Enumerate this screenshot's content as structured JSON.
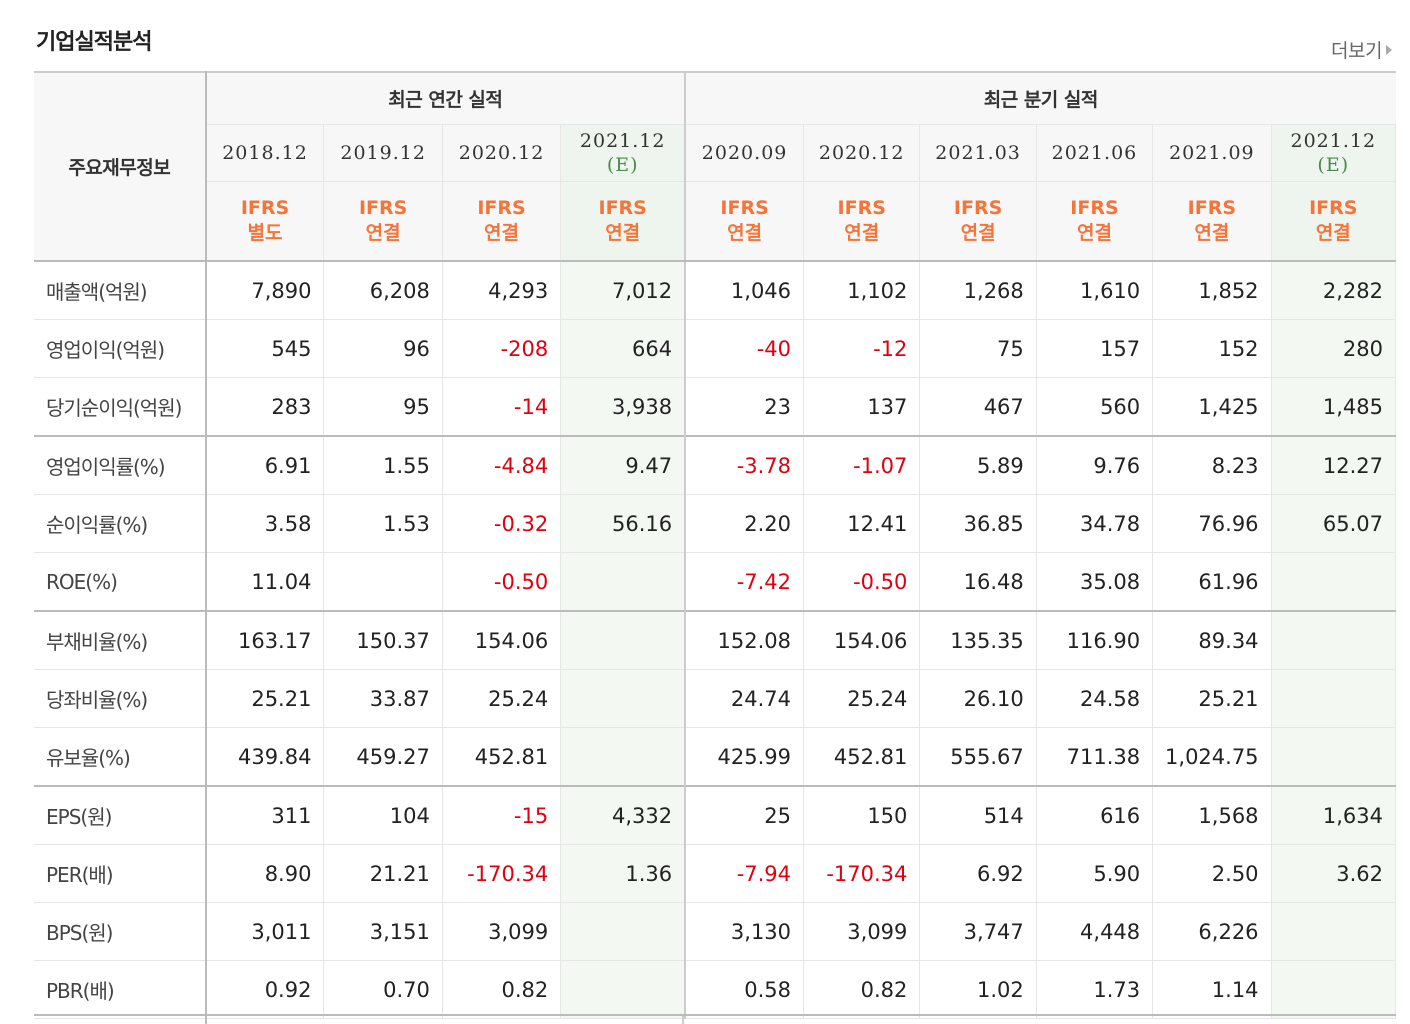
{
  "header": {
    "title": "기업실적분석",
    "more_label": "더보기"
  },
  "table": {
    "corner_label": "주요재무정보",
    "groups": [
      {
        "label": "최근 연간 실적"
      },
      {
        "label": "최근 분기 실적"
      }
    ],
    "periods": [
      {
        "label": "2018.12",
        "est": "",
        "std1": "IFRS",
        "std2": "별도"
      },
      {
        "label": "2019.12",
        "est": "",
        "std1": "IFRS",
        "std2": "연결"
      },
      {
        "label": "2020.12",
        "est": "",
        "std1": "IFRS",
        "std2": "연결"
      },
      {
        "label": "2021.12",
        "est": "(E)",
        "std1": "IFRS",
        "std2": "연결"
      },
      {
        "label": "2020.09",
        "est": "",
        "std1": "IFRS",
        "std2": "연결"
      },
      {
        "label": "2020.12",
        "est": "",
        "std1": "IFRS",
        "std2": "연결"
      },
      {
        "label": "2021.03",
        "est": "",
        "std1": "IFRS",
        "std2": "연결"
      },
      {
        "label": "2021.06",
        "est": "",
        "std1": "IFRS",
        "std2": "연결"
      },
      {
        "label": "2021.09",
        "est": "",
        "std1": "IFRS",
        "std2": "연결"
      },
      {
        "label": "2021.12",
        "est": "(E)",
        "std1": "IFRS",
        "std2": "연결"
      }
    ],
    "rows": [
      {
        "label": "매출액(억원)",
        "values": [
          "7,890",
          "6,208",
          "4,293",
          "7,012",
          "1,046",
          "1,102",
          "1,268",
          "1,610",
          "1,852",
          "2,282"
        ]
      },
      {
        "label": "영업이익(억원)",
        "values": [
          "545",
          "96",
          "-208",
          "664",
          "-40",
          "-12",
          "75",
          "157",
          "152",
          "280"
        ]
      },
      {
        "label": "당기순이익(억원)",
        "values": [
          "283",
          "95",
          "-14",
          "3,938",
          "23",
          "137",
          "467",
          "560",
          "1,425",
          "1,485"
        ]
      },
      {
        "label": "영업이익률(%)",
        "values": [
          "6.91",
          "1.55",
          "-4.84",
          "9.47",
          "-3.78",
          "-1.07",
          "5.89",
          "9.76",
          "8.23",
          "12.27"
        ]
      },
      {
        "label": "순이익률(%)",
        "values": [
          "3.58",
          "1.53",
          "-0.32",
          "56.16",
          "2.20",
          "12.41",
          "36.85",
          "34.78",
          "76.96",
          "65.07"
        ]
      },
      {
        "label": "ROE(%)",
        "values": [
          "11.04",
          "",
          "-0.50",
          "",
          "-7.42",
          "-0.50",
          "16.48",
          "35.08",
          "61.96",
          ""
        ]
      },
      {
        "label": "부채비율(%)",
        "values": [
          "163.17",
          "150.37",
          "154.06",
          "",
          "152.08",
          "154.06",
          "135.35",
          "116.90",
          "89.34",
          ""
        ]
      },
      {
        "label": "당좌비율(%)",
        "values": [
          "25.21",
          "33.87",
          "25.24",
          "",
          "24.74",
          "25.24",
          "26.10",
          "24.58",
          "25.21",
          ""
        ]
      },
      {
        "label": "유보율(%)",
        "values": [
          "439.84",
          "459.27",
          "452.81",
          "",
          "425.99",
          "452.81",
          "555.67",
          "711.38",
          "1,024.75",
          ""
        ]
      },
      {
        "label": "EPS(원)",
        "values": [
          "311",
          "104",
          "-15",
          "4,332",
          "25",
          "150",
          "514",
          "616",
          "1,568",
          "1,634"
        ]
      },
      {
        "label": "PER(배)",
        "values": [
          "8.90",
          "21.21",
          "-170.34",
          "1.36",
          "-7.94",
          "-170.34",
          "6.92",
          "5.90",
          "2.50",
          "3.62"
        ]
      },
      {
        "label": "BPS(원)",
        "values": [
          "3,011",
          "3,151",
          "3,099",
          "",
          "3,130",
          "3,099",
          "3,747",
          "4,448",
          "6,226",
          ""
        ]
      },
      {
        "label": "PBR(배)",
        "values": [
          "0.92",
          "0.70",
          "0.82",
          "",
          "0.58",
          "0.82",
          "1.02",
          "1.73",
          "1.14",
          ""
        ]
      }
    ]
  },
  "colors": {
    "negative": "#e0000f",
    "standard": "#f5743a",
    "estimate": "#4a8a4a",
    "estimate_bg": "#f3f8f3"
  }
}
